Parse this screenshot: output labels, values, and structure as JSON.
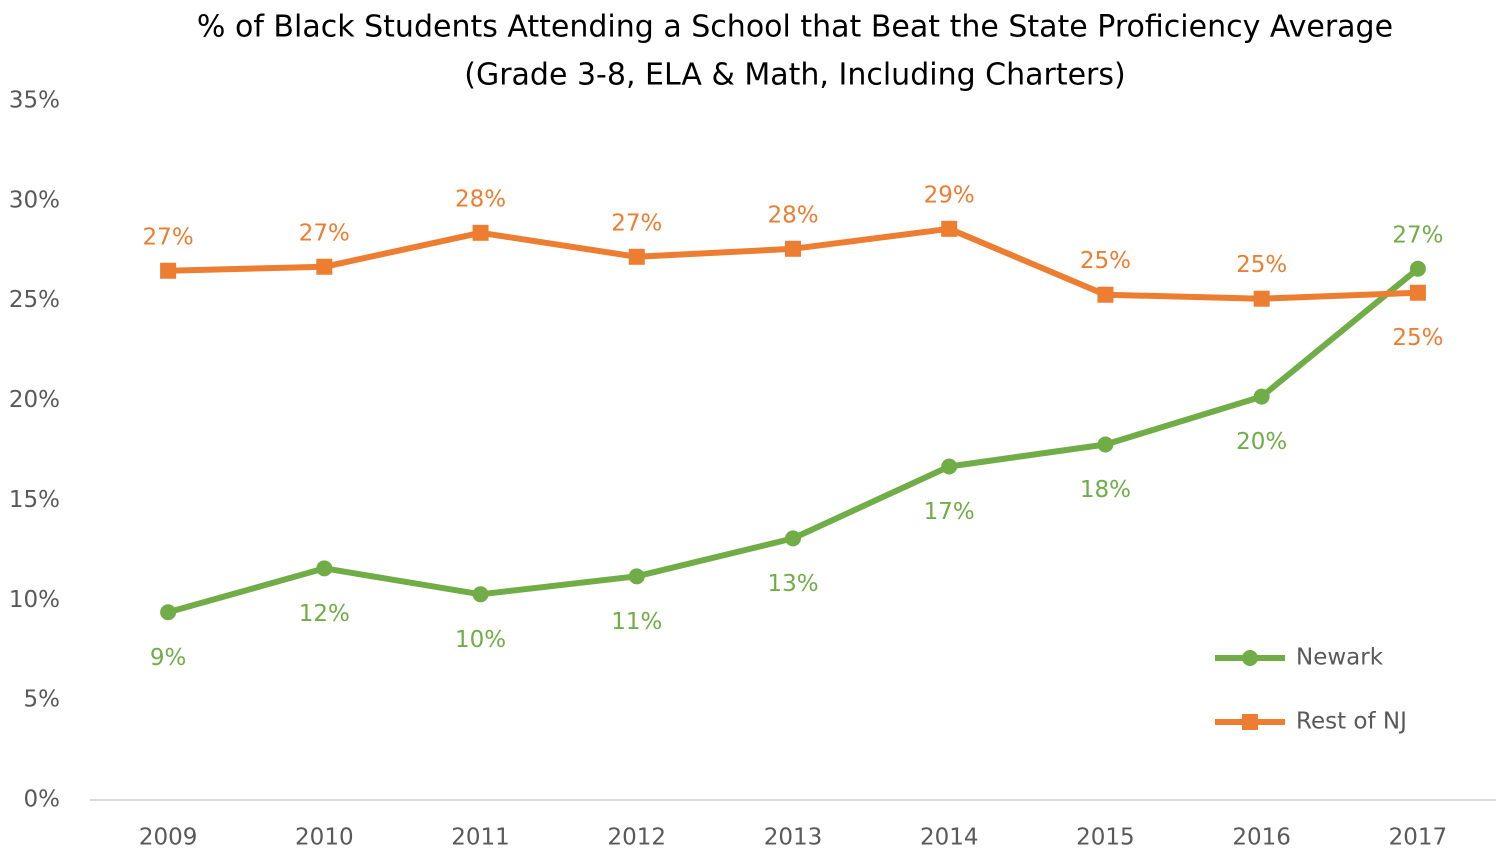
{
  "chart_data": {
    "type": "line",
    "title": "% of Black Students Attending a School that Beat the State Proficiency Average",
    "subtitle": "(Grade 3-8,  ELA & Math, Including Charters)",
    "categories": [
      "2009",
      "2010",
      "2011",
      "2012",
      "2013",
      "2014",
      "2015",
      "2016",
      "2017"
    ],
    "series": [
      {
        "name": "Newark",
        "color": "#70ad47",
        "marker": "circle",
        "values": [
          9.4,
          11.6,
          10.3,
          11.2,
          13.1,
          16.7,
          17.8,
          20.2,
          26.6
        ],
        "value_labels": [
          "9%",
          "12%",
          "10%",
          "11%",
          "13%",
          "17%",
          "18%",
          "20%",
          "27%"
        ]
      },
      {
        "name": "Rest of NJ",
        "color": "#ed7d31",
        "marker": "square",
        "values": [
          26.5,
          26.7,
          28.4,
          27.2,
          27.6,
          28.6,
          25.3,
          25.1,
          25.4
        ],
        "value_labels": [
          "27%",
          "27%",
          "28%",
          "27%",
          "28%",
          "29%",
          "25%",
          "25%",
          "25%"
        ]
      }
    ],
    "ylim": [
      0,
      35
    ],
    "yticks": [
      {
        "value": 0,
        "label": "0%"
      },
      {
        "value": 5,
        "label": "5%"
      },
      {
        "value": 10,
        "label": "10%"
      },
      {
        "value": 15,
        "label": "15%"
      },
      {
        "value": 20,
        "label": "20%"
      },
      {
        "value": 25,
        "label": "25%"
      },
      {
        "value": 30,
        "label": "30%"
      },
      {
        "value": 35,
        "label": "35%"
      }
    ],
    "grid": false,
    "legend": "lower right"
  }
}
